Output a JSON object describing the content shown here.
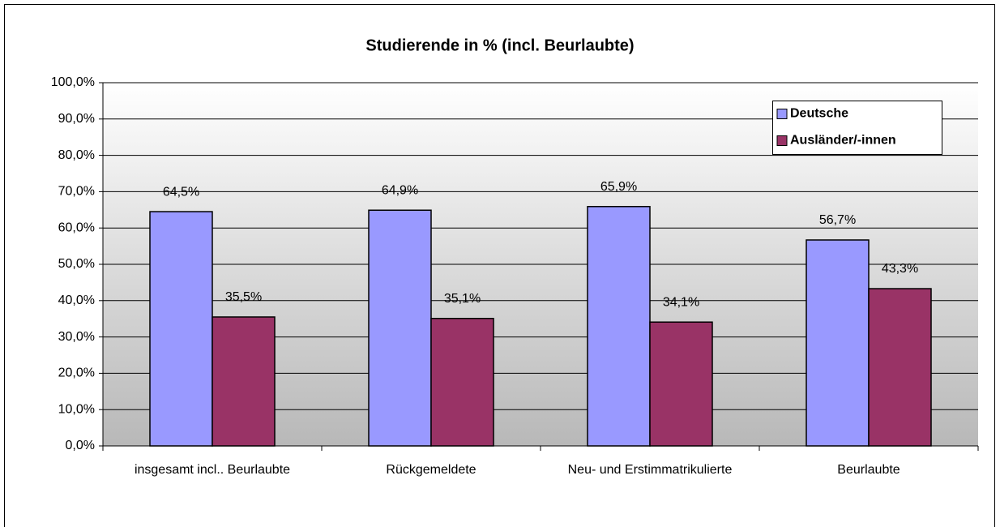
{
  "chart_data": {
    "type": "bar",
    "title": "Studierende in % (incl. Beurlaubte)",
    "categories": [
      "insgesamt incl.. Beurlaubte",
      "Rückgemeldete",
      "Neu- und Erstimmatrikulierte",
      "Beurlaubte"
    ],
    "series": [
      {
        "name": "Deutsche",
        "color": "#9999ff",
        "values": [
          64.5,
          64.9,
          65.9,
          56.7
        ],
        "value_labels": [
          "64,5%",
          "64,9%",
          "65,9%",
          "56,7%"
        ]
      },
      {
        "name": "Ausländer/-innen",
        "color": "#993366",
        "values": [
          35.5,
          35.1,
          34.1,
          43.3
        ],
        "value_labels": [
          "35,5%",
          "35,1%",
          "34,1%",
          "43,3%"
        ]
      }
    ],
    "ylim": [
      0,
      100
    ],
    "yticks": [
      {
        "value": 0,
        "label": "0,0%"
      },
      {
        "value": 10,
        "label": "10,0%"
      },
      {
        "value": 20,
        "label": "20,0%"
      },
      {
        "value": 30,
        "label": "30,0%"
      },
      {
        "value": 40,
        "label": "40,0%"
      },
      {
        "value": 50,
        "label": "50,0%"
      },
      {
        "value": 60,
        "label": "60,0%"
      },
      {
        "value": 70,
        "label": "70,0%"
      },
      {
        "value": 80,
        "label": "80,0%"
      },
      {
        "value": 90,
        "label": "90,0%"
      },
      {
        "value": 100,
        "label": "100,0%"
      }
    ],
    "grid": true,
    "legend": "top-right"
  }
}
